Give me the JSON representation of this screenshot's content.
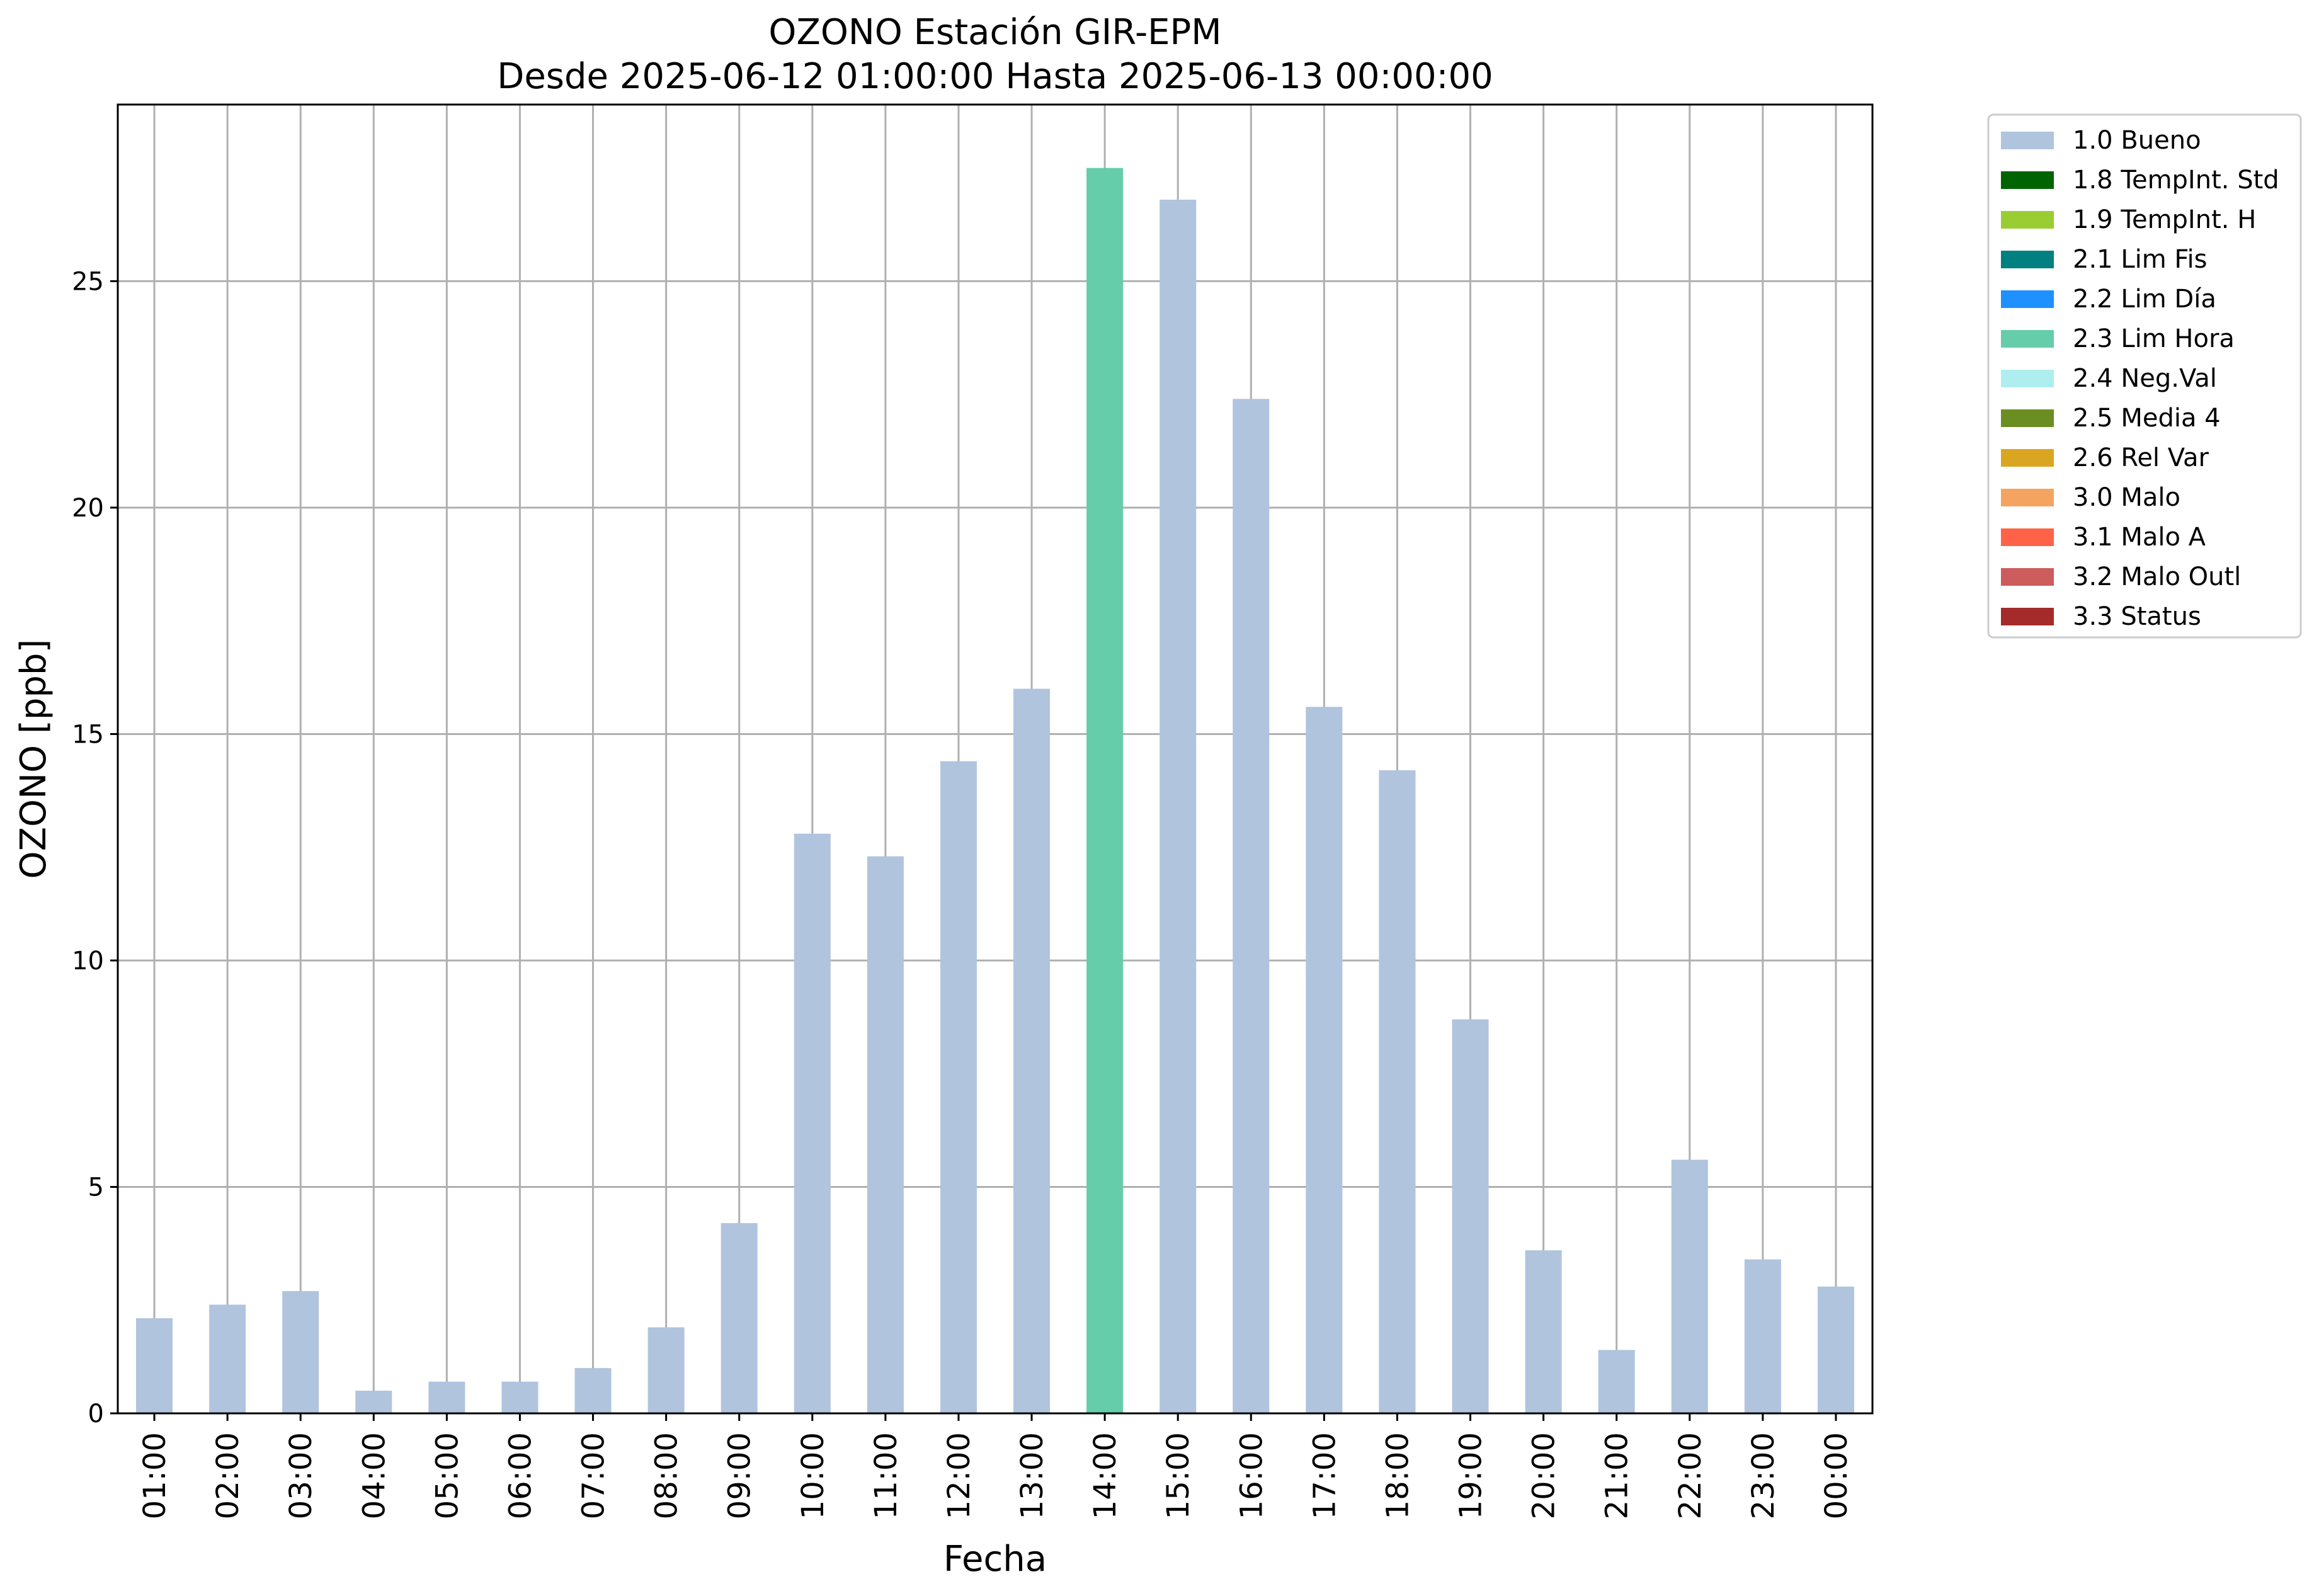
{
  "chart_data": {
    "type": "bar",
    "title": "OZONO Estación GIR-EPM",
    "subtitle": "Desde 2025-06-12 01:00:00 Hasta 2025-06-13 00:00:00",
    "xlabel": "Fecha",
    "ylabel": "OZONO [ppb]",
    "ylim": [
      0,
      28.9
    ],
    "yticks": [
      "0",
      "5",
      "10",
      "15",
      "20",
      "25"
    ],
    "grid": true,
    "legend_position": "outside-top-right",
    "categories": [
      "01:00",
      "02:00",
      "03:00",
      "04:00",
      "05:00",
      "06:00",
      "07:00",
      "08:00",
      "09:00",
      "10:00",
      "11:00",
      "12:00",
      "13:00",
      "14:00",
      "15:00",
      "16:00",
      "17:00",
      "18:00",
      "19:00",
      "20:00",
      "21:00",
      "22:00",
      "23:00",
      "00:00"
    ],
    "values": [
      2.1,
      2.4,
      2.7,
      0.5,
      0.7,
      0.7,
      1.0,
      1.9,
      4.2,
      12.8,
      12.3,
      14.4,
      16.0,
      27.5,
      26.8,
      22.4,
      15.6,
      14.2,
      8.7,
      3.6,
      1.4,
      5.6,
      3.4,
      2.8
    ],
    "flags": [
      "1.0 Bueno",
      "1.0 Bueno",
      "1.0 Bueno",
      "1.0 Bueno",
      "1.0 Bueno",
      "1.0 Bueno",
      "1.0 Bueno",
      "1.0 Bueno",
      "1.0 Bueno",
      "1.0 Bueno",
      "1.0 Bueno",
      "1.0 Bueno",
      "1.0 Bueno",
      "2.3 Lim Hora",
      "1.0 Bueno",
      "1.0 Bueno",
      "1.0 Bueno",
      "1.0 Bueno",
      "1.0 Bueno",
      "1.0 Bueno",
      "1.0 Bueno",
      "1.0 Bueno",
      "1.0 Bueno",
      "1.0 Bueno"
    ],
    "legend": [
      {
        "label": "1.0 Bueno",
        "color": "#b0c4de"
      },
      {
        "label": "1.8 TempInt. Std",
        "color": "#006400"
      },
      {
        "label": "1.9 TempInt. H",
        "color": "#9acd32"
      },
      {
        "label": "2.1 Lim Fis",
        "color": "#008080"
      },
      {
        "label": "2.2 Lim Día",
        "color": "#1e90ff"
      },
      {
        "label": "2.3 Lim Hora",
        "color": "#66cdaa"
      },
      {
        "label": "2.4 Neg.Val",
        "color": "#afeeee"
      },
      {
        "label": "2.5 Media 4",
        "color": "#6b8e23"
      },
      {
        "label": "2.6 Rel Var",
        "color": "#daa520"
      },
      {
        "label": "3.0 Malo",
        "color": "#f4a460"
      },
      {
        "label": "3.1 Malo A",
        "color": "#ff6347"
      },
      {
        "label": "3.2 Malo Outl",
        "color": "#cd5c5c"
      },
      {
        "label": "3.3 Status",
        "color": "#a52a2a"
      }
    ]
  }
}
